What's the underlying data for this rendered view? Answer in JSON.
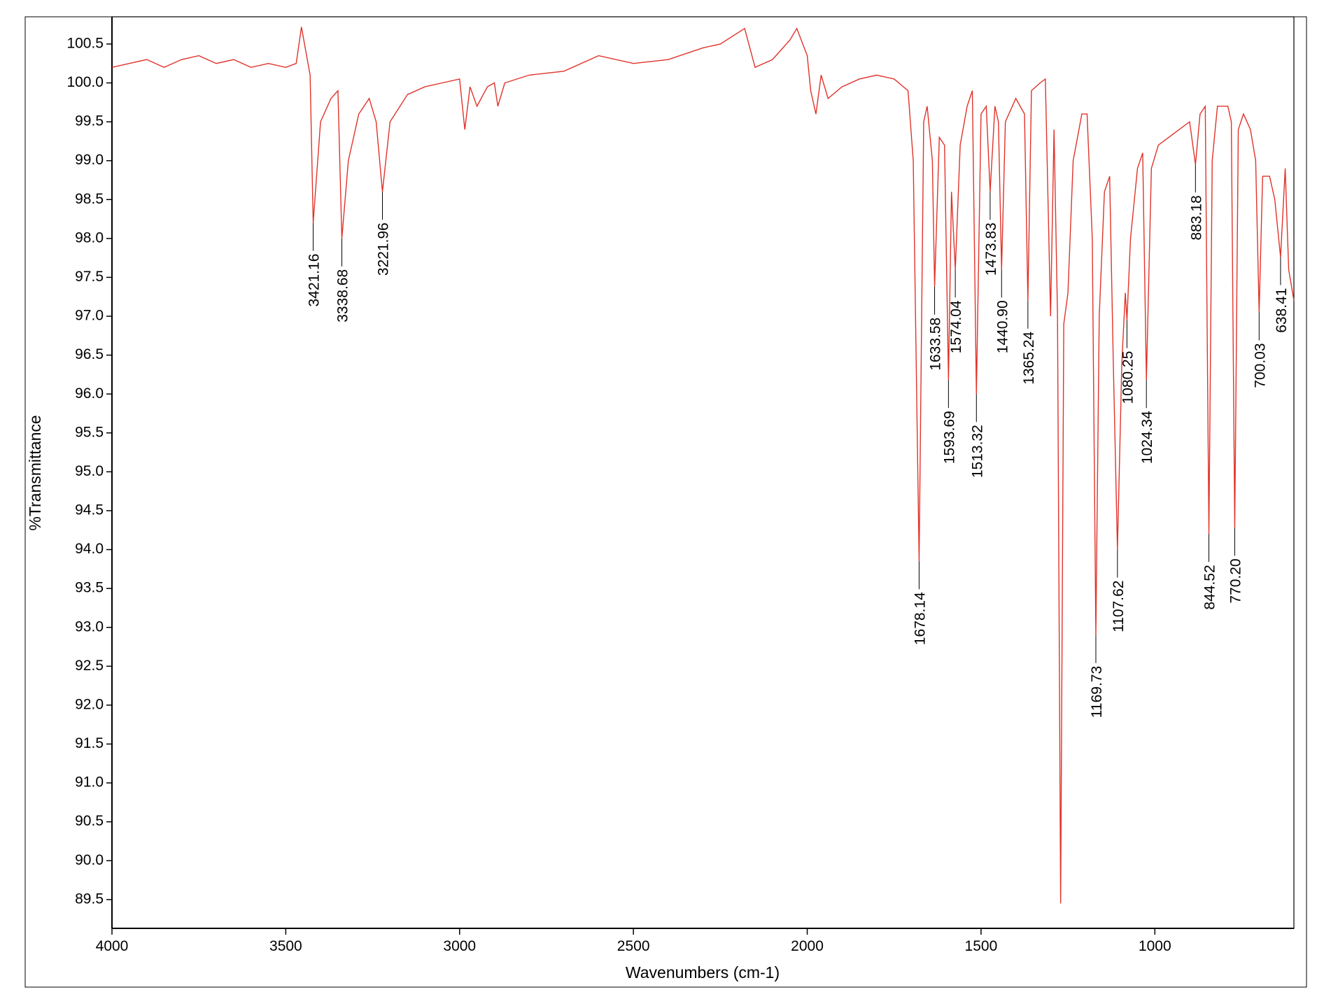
{
  "chart_data": {
    "type": "line",
    "xlabel": "Wavenumbers (cm-1)",
    "ylabel": "%Transmittance",
    "color": "#e0332a",
    "xlim": [
      4000,
      600
    ],
    "ylim": [
      89.13,
      100.85
    ],
    "xticks": [
      4000,
      3500,
      3000,
      2500,
      2000,
      1500,
      1000
    ],
    "yticks": [
      89.5,
      {
        "value": 90,
        "label": "90.0"
      },
      90.5,
      {
        "value": 91,
        "label": "91.0"
      },
      91.5,
      {
        "value": 92,
        "label": "92.0"
      },
      92.5,
      {
        "value": 93,
        "label": "93.0"
      },
      93.5,
      {
        "value": 94,
        "label": "94.0"
      },
      94.5,
      {
        "value": 95,
        "label": "95.0"
      },
      95.5,
      {
        "value": 96,
        "label": "96.0"
      },
      96.5,
      {
        "value": 97,
        "label": "97.0"
      },
      97.5,
      {
        "value": 98,
        "label": "98.0"
      },
      98.5,
      {
        "value": 99,
        "label": "99.0"
      },
      99.5,
      {
        "value": 100,
        "label": "100.0"
      },
      100.5
    ],
    "x": [
      4000,
      3950,
      3900,
      3850,
      3800,
      3750,
      3700,
      3650,
      3600,
      3550,
      3500,
      3470,
      3455,
      3430,
      3421.16,
      3400,
      3370,
      3350,
      3338.68,
      3320,
      3290,
      3260,
      3240,
      3221.96,
      3200,
      3150,
      3100,
      3050,
      3000,
      2985,
      2970,
      2950,
      2920,
      2900,
      2890,
      2870,
      2800,
      2700,
      2600,
      2500,
      2400,
      2300,
      2250,
      2180,
      2150,
      2100,
      2050,
      2030,
      2000,
      1990,
      1975,
      1960,
      1940,
      1900,
      1850,
      1800,
      1750,
      1710,
      1695,
      1678.14,
      1665,
      1655,
      1640,
      1633.58,
      1620,
      1605,
      1593.69,
      1585,
      1574.04,
      1560,
      1540,
      1525,
      1513.32,
      1500,
      1485,
      1473.83,
      1460,
      1450,
      1440.9,
      1430,
      1400,
      1375,
      1365.24,
      1355,
      1330,
      1315,
      1300,
      1290,
      1280,
      1271,
      1262,
      1250,
      1235,
      1210,
      1195,
      1180,
      1169.73,
      1160,
      1145,
      1130,
      1120,
      1107.62,
      1095,
      1085,
      1080.25,
      1070,
      1050,
      1035,
      1024.34,
      1010,
      990,
      960,
      930,
      900,
      883.18,
      870,
      855,
      844.52,
      835,
      820,
      790,
      780,
      770.2,
      760,
      745,
      725,
      710,
      700.03,
      690,
      670,
      655,
      638.41,
      625,
      615,
      600
    ],
    "values": [
      100.2,
      100.25,
      100.3,
      100.2,
      100.3,
      100.35,
      100.25,
      100.3,
      100.2,
      100.25,
      100.2,
      100.25,
      100.72,
      100.1,
      98.2,
      99.5,
      99.8,
      99.9,
      98.0,
      99.0,
      99.6,
      99.8,
      99.5,
      98.6,
      99.5,
      99.85,
      99.95,
      100.0,
      100.05,
      99.4,
      99.95,
      99.7,
      99.95,
      100.0,
      99.7,
      100.0,
      100.1,
      100.15,
      100.35,
      100.25,
      100.3,
      100.45,
      100.5,
      100.7,
      100.2,
      100.3,
      100.55,
      100.7,
      100.35,
      99.9,
      99.6,
      100.1,
      99.8,
      99.95,
      100.05,
      100.1,
      100.05,
      99.9,
      99.0,
      93.85,
      99.5,
      99.7,
      99.0,
      97.38,
      99.3,
      99.2,
      96.18,
      98.6,
      97.6,
      99.2,
      99.7,
      99.9,
      96.0,
      99.6,
      99.7,
      98.6,
      99.7,
      99.5,
      97.6,
      99.5,
      99.8,
      99.6,
      97.2,
      99.9,
      100.0,
      100.05,
      97.0,
      99.4,
      97.0,
      89.45,
      96.9,
      97.3,
      99.0,
      99.6,
      99.6,
      98.0,
      92.9,
      97.0,
      98.6,
      98.8,
      96.5,
      94.0,
      96.4,
      97.3,
      96.95,
      98.0,
      98.9,
      99.1,
      96.18,
      98.9,
      99.2,
      99.3,
      99.4,
      99.5,
      98.95,
      99.6,
      99.7,
      94.2,
      99.0,
      99.7,
      99.7,
      99.5,
      94.28,
      99.4,
      99.6,
      99.4,
      99.0,
      97.05,
      98.8,
      98.8,
      98.5,
      97.76,
      98.9,
      97.6,
      97.2
    ],
    "peaks": {
      "x": [
        3421.16,
        3338.68,
        3221.96,
        1678.14,
        1633.58,
        1593.69,
        1574.04,
        1513.32,
        1473.83,
        1440.9,
        1365.24,
        1169.73,
        1107.62,
        1080.25,
        1024.34,
        883.18,
        844.52,
        770.2,
        700.03,
        638.41
      ],
      "y": [
        98.2,
        98.0,
        98.6,
        93.85,
        97.38,
        96.18,
        97.6,
        96.0,
        98.6,
        97.6,
        97.2,
        92.9,
        94.0,
        96.95,
        96.18,
        98.95,
        94.2,
        94.28,
        97.05,
        97.76
      ],
      "labels": [
        "3421.16",
        "3338.68",
        "3221.96",
        "1678.14",
        "1633.58",
        "1593.69",
        "1574.04",
        "1513.32",
        "1473.83",
        "1440.90",
        "1365.24",
        "1169.73",
        "1107.62",
        "1080.25",
        "1024.34",
        "883.18",
        "844.52",
        "770.20",
        "700.03",
        "638.41"
      ]
    }
  }
}
